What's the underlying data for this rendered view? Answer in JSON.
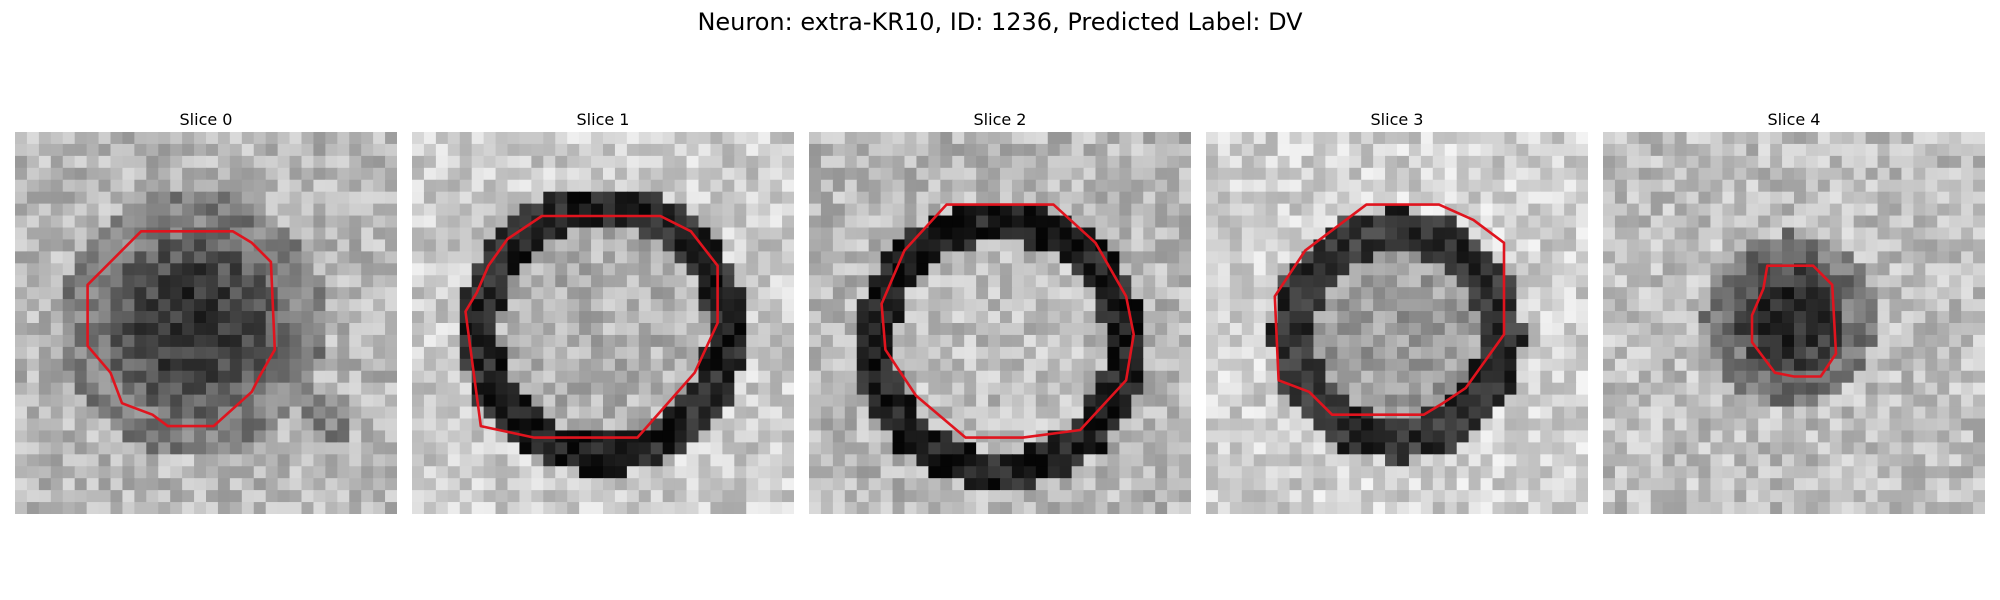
{
  "figure": {
    "title": "Neuron: extra-KR10, ID: 1236, Predicted Label: DV"
  },
  "colors": {
    "contour": "#e0141e",
    "background": "#ffffff"
  },
  "panels": [
    {
      "title": "Slice 0",
      "image": "grayscale image patch, dark roughly round cell body in center",
      "contour_label": "red ROI outline"
    },
    {
      "title": "Slice 1",
      "image": "grayscale image patch, bright center ringed by dark border",
      "contour_label": "red ROI outline"
    },
    {
      "title": "Slice 2",
      "image": "grayscale image patch, bright center ringed by dark border",
      "contour_label": "red ROI outline"
    },
    {
      "title": "Slice 3",
      "image": "grayscale image patch, lighter center with dark rim",
      "contour_label": "red ROI outline"
    },
    {
      "title": "Slice 4",
      "image": "grayscale image patch, small dark spot in center",
      "contour_label": "red ROI outline"
    }
  ]
}
